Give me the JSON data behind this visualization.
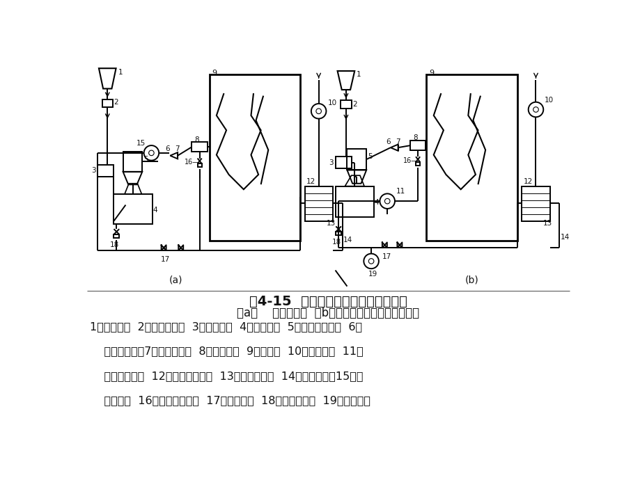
{
  "title_line": "图4-15  中速磨煤机的直吹式制粉系统",
  "subtitle_line": "（a）    负压系统；  （b）正压系统（带热一次风机）",
  "desc_line1": "1－原煤仓；  2－自动磅秤；  3－给煤机；  4－磨煤机；  5－煤粉分离器；  6－",
  "desc_line2": "    一次风风箱；7－煤粉管道；  8－燃烧器；  9－锅炉；  10－送风机；  11－",
  "desc_line3": "    热一次风机；  12－空气预热器；  13－热风管道；  14－冷风管道；15－排",
  "desc_line4": "    粉风机；  16－二次风风箱；  17－冷风门；  18－密封风门；  19－密封风机",
  "bg_color": "#ffffff",
  "text_color": "#1a1a1a",
  "title_fontsize": 14,
  "subtitle_fontsize": 12,
  "desc_fontsize": 12
}
